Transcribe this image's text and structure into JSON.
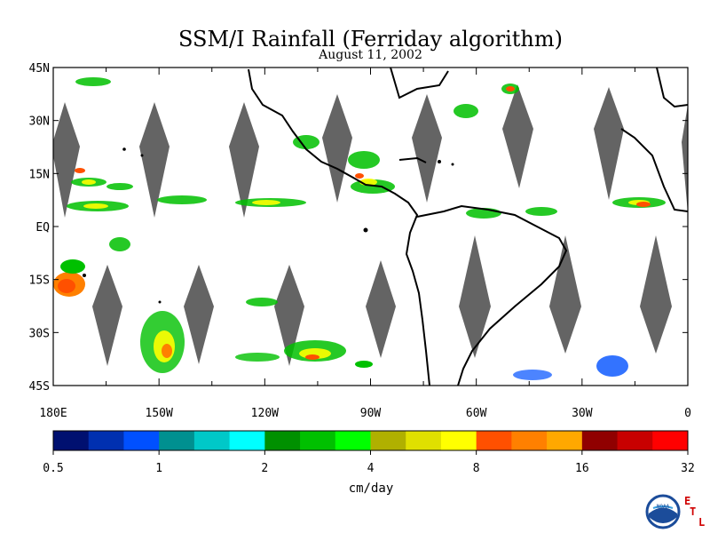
{
  "map": {
    "title": "SSM/I Rainfall (Ferriday algorithm)",
    "subtitle": "August 11, 2002",
    "lat_labels": [
      {
        "text": "45N",
        "lat": 45
      },
      {
        "text": "30N",
        "lat": 30
      },
      {
        "text": "15N",
        "lat": 15
      },
      {
        "text": "EQ",
        "lat": 0
      },
      {
        "text": "15S",
        "lat": -15
      },
      {
        "text": "30S",
        "lat": -30
      },
      {
        "text": "45S",
        "lat": -45
      }
    ],
    "lon_labels": [
      {
        "text": "180E",
        "lon": -180
      },
      {
        "text": "150W",
        "lon": -150
      },
      {
        "text": "120W",
        "lon": -120
      },
      {
        "text": "90W",
        "lon": -90
      },
      {
        "text": "60W",
        "lon": -60
      },
      {
        "text": "30W",
        "lon": -30
      },
      {
        "text": "0",
        "lon": 0
      }
    ],
    "extent": {
      "lon": [
        -180,
        0
      ],
      "lat": [
        -45,
        45
      ]
    }
  },
  "colorbar": {
    "colors": [
      "#001070",
      "#0030b0",
      "#0050ff",
      "#009090",
      "#00c8c8",
      "#00ffff",
      "#009000",
      "#00c000",
      "#00ff00",
      "#b0b000",
      "#e0e000",
      "#ffff00",
      "#ff5000",
      "#ff8000",
      "#ffa800",
      "#900000",
      "#c80000",
      "#ff0000"
    ],
    "tick_labels": [
      "0.5",
      "1",
      "2",
      "4",
      "8",
      "16",
      "32"
    ],
    "unit": "cm/day"
  },
  "logo": {
    "noaa_text": "NOAA",
    "letters": [
      "E",
      "T",
      "L"
    ],
    "accent": "#d00000"
  }
}
